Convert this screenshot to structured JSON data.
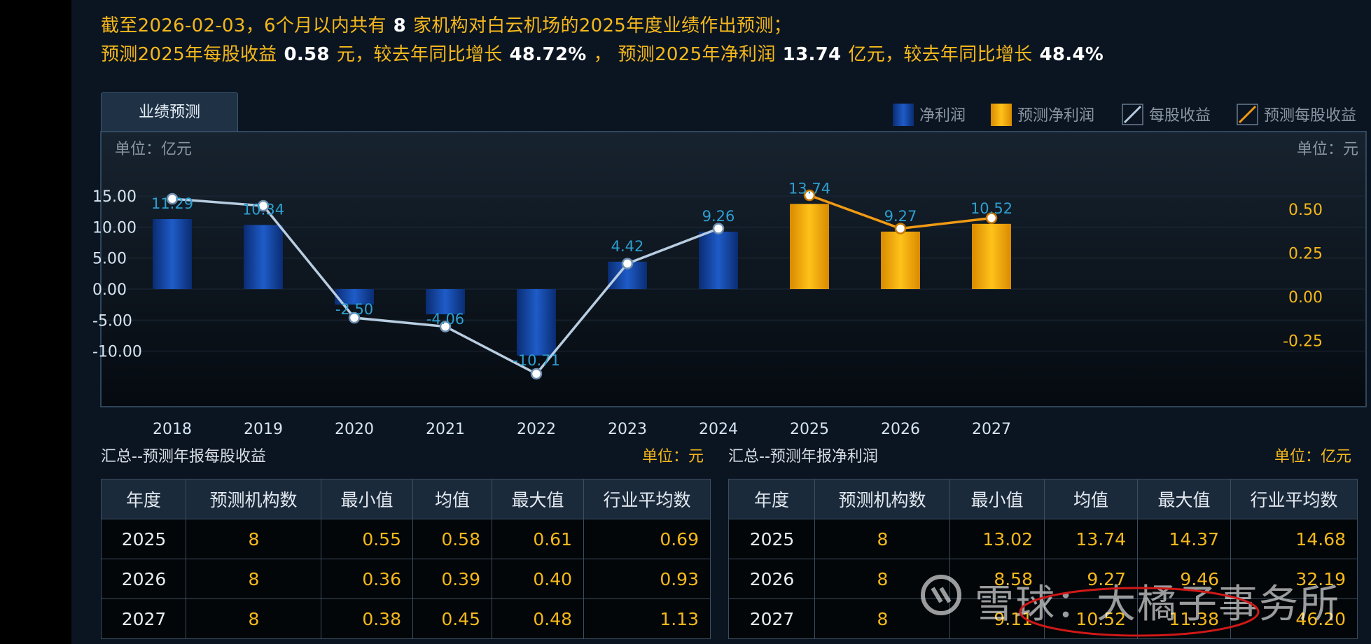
{
  "headline": {
    "line1_pre": "截至2026-02-03，6个月以内共有",
    "line1_count": "8",
    "line1_post": "家机构对白云机场的2025年度业绩作出预测；",
    "line2_a": "预测2025年每股收益",
    "line2_eps": "0.58",
    "line2_b": "元，较去年同比增长",
    "line2_eps_growth": "48.72%",
    "line2_c": "，  预测2025年净利润",
    "line2_np": "13.74",
    "line2_d": "亿元，较去年同比增长",
    "line2_np_growth": "48.4%"
  },
  "tab_label": "业绩预测",
  "colors": {
    "actual_bar": "#1148a8",
    "forecast_bar": "#f5a800",
    "eps_line": "#b8cde0",
    "forecast_eps_line": "#f09a14",
    "accent_text": "#f5b81b",
    "data_label": "#2d9fd0"
  },
  "chart_data": {
    "type": "bar",
    "categories": [
      "2018",
      "2019",
      "2020",
      "2021",
      "2022",
      "2023",
      "2024",
      "2025",
      "2026",
      "2027"
    ],
    "left_unit": "单位：亿元",
    "right_unit": "单位：元",
    "left_ticks": [
      "15.00",
      "10.00",
      "5.00",
      "0.00",
      "-5.00",
      "-10.00"
    ],
    "right_ticks": [
      "0.50",
      "0.25",
      "0.00",
      "-0.25"
    ],
    "ylim": [
      -15,
      15
    ],
    "y2lim": [
      -0.6,
      0.6
    ],
    "legend": [
      "净利润",
      "预测净利润",
      "每股收益",
      "预测每股收益"
    ],
    "legend_position": "top-right",
    "series": [
      {
        "name": "净利润",
        "kind": "bar",
        "values": [
          11.29,
          10.34,
          -2.5,
          -4.06,
          -10.71,
          4.42,
          9.26,
          null,
          null,
          null
        ],
        "labels": [
          "11.29",
          "10.34",
          "-2.50",
          "-4.06",
          "-10.71",
          "4.42",
          "9.26",
          "",
          "",
          ""
        ]
      },
      {
        "name": "预测净利润",
        "kind": "bar",
        "values": [
          null,
          null,
          null,
          null,
          null,
          null,
          null,
          13.74,
          9.27,
          10.52
        ],
        "labels": [
          "",
          "",
          "",
          "",
          "",
          "",
          "",
          "13.74",
          "9.27",
          "10.52"
        ]
      },
      {
        "name": "每股收益",
        "kind": "line",
        "values": [
          0.56,
          0.52,
          -0.12,
          -0.17,
          -0.44,
          0.19,
          0.39,
          null,
          null,
          null
        ]
      },
      {
        "name": "预测每股收益",
        "kind": "line",
        "values": [
          null,
          null,
          null,
          null,
          null,
          null,
          null,
          0.58,
          0.39,
          0.45
        ]
      }
    ]
  },
  "eps_table": {
    "title": "汇总--预测年报每股收益",
    "unit": "单位：元",
    "headers": [
      "年度",
      "预测机构数",
      "最小值",
      "均值",
      "最大值",
      "行业平均数"
    ],
    "rows": [
      [
        "2025",
        "8",
        "0.55",
        "0.58",
        "0.61",
        "0.69"
      ],
      [
        "2026",
        "8",
        "0.36",
        "0.39",
        "0.40",
        "0.93"
      ],
      [
        "2027",
        "8",
        "0.38",
        "0.45",
        "0.48",
        "1.13"
      ]
    ]
  },
  "np_table": {
    "title": "汇总--预测年报净利润",
    "unit": "单位：亿元",
    "headers": [
      "年度",
      "预测机构数",
      "最小值",
      "均值",
      "最大值",
      "行业平均数"
    ],
    "rows": [
      [
        "2025",
        "8",
        "13.02",
        "13.74",
        "14.37",
        "14.68"
      ],
      [
        "2026",
        "8",
        "8.58",
        "9.27",
        "9.46",
        "32.19"
      ],
      [
        "2027",
        "8",
        "9.11",
        "10.52",
        "11.38",
        "46.20"
      ]
    ]
  },
  "watermark": "雪球：大橘子事务所"
}
